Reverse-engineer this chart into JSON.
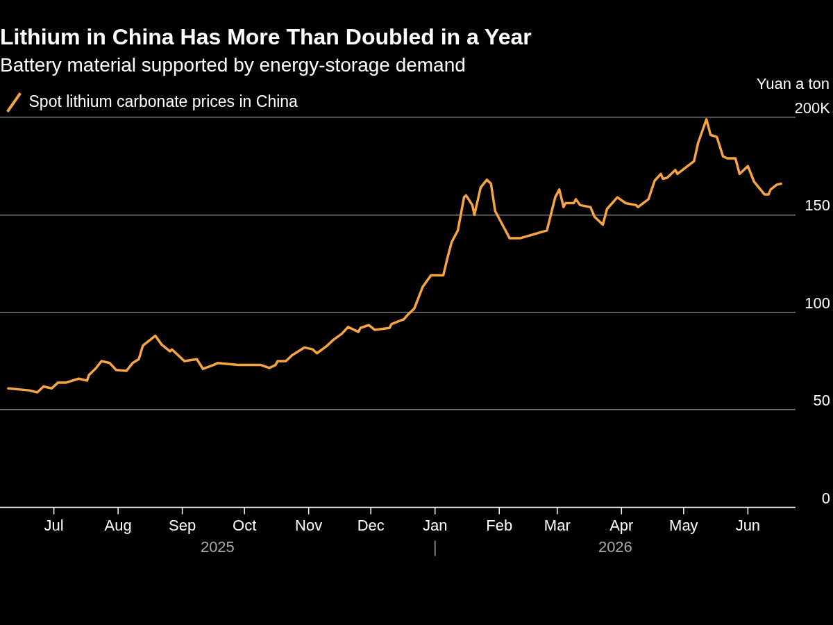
{
  "chart_data": {
    "type": "line",
    "title": "Lithium in China Has More Than Doubled in a Year",
    "subtitle": "Battery material supported by energy-storage demand",
    "ylabel": "Yuan a ton",
    "x": [
      "2025-06-09",
      "2025-06-19",
      "2025-06-23",
      "2025-06-26",
      "2025-06-30",
      "2025-07-03",
      "2025-07-07",
      "2025-07-13",
      "2025-07-17",
      "2025-07-18",
      "2025-07-21",
      "2025-07-24",
      "2025-07-28",
      "2025-07-31",
      "2025-08-05",
      "2025-08-08",
      "2025-08-11",
      "2025-08-13",
      "2025-08-19",
      "2025-08-22",
      "2025-08-26",
      "2025-08-27",
      "2025-08-29",
      "2025-09-02",
      "2025-09-08",
      "2025-09-11",
      "2025-09-16",
      "2025-09-18",
      "2025-09-28",
      "2025-10-09",
      "2025-10-13",
      "2025-10-16",
      "2025-10-17",
      "2025-10-21",
      "2025-10-24",
      "2025-10-30",
      "2025-11-03",
      "2025-11-05",
      "2025-11-10",
      "2025-11-13",
      "2025-11-17",
      "2025-11-20",
      "2025-11-25",
      "2025-11-26",
      "2025-11-30",
      "2025-12-03",
      "2025-12-10",
      "2025-12-11",
      "2025-12-17",
      "2025-12-19",
      "2025-12-22",
      "2025-12-26",
      "2025-12-30",
      "2026-01-05",
      "2026-01-07",
      "2026-01-09",
      "2026-01-12",
      "2026-01-15",
      "2026-01-16",
      "2026-01-19",
      "2026-01-20",
      "2026-01-23",
      "2026-01-26",
      "2026-01-28",
      "2026-01-30",
      "2026-02-01",
      "2026-02-03",
      "2026-02-06",
      "2026-02-11",
      "2026-02-24",
      "2026-02-28",
      "2026-03-02",
      "2026-03-04",
      "2026-03-05",
      "2026-03-09",
      "2026-03-10",
      "2026-03-12",
      "2026-03-17",
      "2026-03-19",
      "2026-03-23",
      "2026-03-25",
      "2026-03-30",
      "2026-04-03",
      "2026-04-08",
      "2026-04-09",
      "2026-04-14",
      "2026-04-17",
      "2026-04-20",
      "2026-04-21",
      "2026-04-23",
      "2026-04-27",
      "2026-04-28",
      "2026-05-06",
      "2026-05-08",
      "2026-05-12",
      "2026-05-14",
      "2026-05-17",
      "2026-05-20",
      "2026-05-22",
      "2026-05-26",
      "2026-05-28",
      "2026-06-01",
      "2026-06-04",
      "2026-06-09",
      "2026-06-11",
      "2026-06-12",
      "2026-06-15",
      "2026-06-17"
    ],
    "series": [
      {
        "name": "Spot lithium carbonate prices in China",
        "color": "#f7a541",
        "values": [
          61,
          60,
          59,
          62,
          61,
          64,
          64,
          66,
          65,
          68,
          71,
          75,
          74,
          70.5,
          70,
          74,
          76,
          83,
          88,
          83.5,
          80,
          81,
          79,
          75,
          76,
          71,
          73,
          74,
          73,
          73,
          71.5,
          73,
          75,
          75,
          78,
          82,
          81,
          79,
          83,
          86,
          89,
          92.5,
          90,
          92,
          93.5,
          91,
          92,
          94,
          96.5,
          99,
          102,
          113,
          119,
          119,
          128,
          136,
          142,
          159,
          160,
          155,
          150,
          164,
          168,
          166,
          152,
          148,
          144,
          138,
          138,
          142,
          159,
          163,
          154,
          156,
          156,
          158,
          155,
          154,
          149,
          145,
          153,
          159,
          156,
          155,
          154,
          158,
          167.5,
          171,
          168.5,
          169,
          173,
          171,
          177.5,
          187,
          199,
          191,
          190,
          180,
          179,
          179,
          171,
          175,
          167,
          160.5,
          160.5,
          163,
          165.5,
          166
        ]
      }
    ],
    "xlim": [
      "2025-06-05",
      "2026-06-24"
    ],
    "xticks": [
      {
        "value": "2025-07-01",
        "label": "Jul"
      },
      {
        "value": "2025-08-01",
        "label": "Aug"
      },
      {
        "value": "2025-09-01",
        "label": "Sep"
      },
      {
        "value": "2025-10-01",
        "label": "Oct"
      },
      {
        "value": "2025-11-01",
        "label": "Nov"
      },
      {
        "value": "2025-12-01",
        "label": "Dec"
      },
      {
        "value": "2026-01-01",
        "label": "Jan"
      },
      {
        "value": "2026-02-01",
        "label": "Feb"
      },
      {
        "value": "2026-03-01",
        "label": "Mar"
      },
      {
        "value": "2026-04-01",
        "label": "Apr"
      },
      {
        "value": "2026-05-01",
        "label": "May"
      },
      {
        "value": "2026-06-01",
        "label": "Jun"
      }
    ],
    "ylim": [
      0,
      200
    ],
    "yticks": [
      0,
      50,
      100,
      150,
      {
        "value": 200,
        "label": "200K"
      }
    ],
    "annotations": [
      "2025",
      "2026"
    ],
    "grid": "y",
    "legend": "top left",
    "marker": "none",
    "line_style": "solid"
  }
}
